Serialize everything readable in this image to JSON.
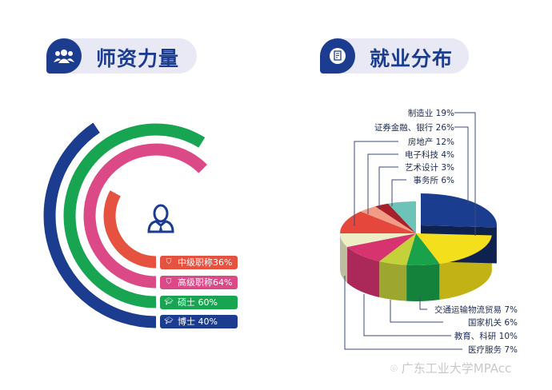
{
  "sections": {
    "faculty_title": "师资力量",
    "employment_title": "就业分布"
  },
  "faculty": {
    "items": [
      {
        "label": "中级职称36%",
        "value": 36,
        "color": "#e5523f",
        "icon": "shield-icon"
      },
      {
        "label": "高级职称64%",
        "value": 64,
        "color": "#db4a86",
        "icon": "shield-icon"
      },
      {
        "label": "硕士 60%",
        "value": 60,
        "color": "#17a551",
        "icon": "graduation-cap-icon"
      },
      {
        "label": "博士 40%",
        "value": 40,
        "color": "#1c3d8f",
        "icon": "graduation-cap-icon"
      }
    ]
  },
  "chart_data": {
    "type": "pie",
    "slices": [
      {
        "label": "证券金融、银行 26%",
        "name": "证券金融、银行",
        "value": 26,
        "color": "#1b3d8f"
      },
      {
        "label": "制造业 19%",
        "name": "制造业",
        "value": 19,
        "color": "#f3df1c"
      },
      {
        "label": "交通运输物流贸易 7%",
        "name": "交通运输物流贸易",
        "value": 7,
        "color": "#1aa24a"
      },
      {
        "label": "国家机关 6%",
        "name": "国家机关",
        "value": 6,
        "color": "#c4d13b"
      },
      {
        "label": "教育、科研 10%",
        "name": "教育、科研",
        "value": 10,
        "color": "#d6336f"
      },
      {
        "label": "医疗服务 7%",
        "name": "医疗服务",
        "value": 7,
        "color": "#eeeec6"
      },
      {
        "label": "房地产 12%",
        "name": "房地产",
        "value": 12,
        "color": "#e5473d"
      },
      {
        "label": "电子科技 4%",
        "name": "电子科技",
        "value": 4,
        "color": "#f29b85"
      },
      {
        "label": "艺术设计 3%",
        "name": "艺术设计",
        "value": 3,
        "color": "#a8202a"
      },
      {
        "label": "事务所 6%",
        "name": "事务所",
        "value": 6,
        "color": "#6ec3b8"
      }
    ]
  },
  "watermark": "广东工业大学MPAcc"
}
